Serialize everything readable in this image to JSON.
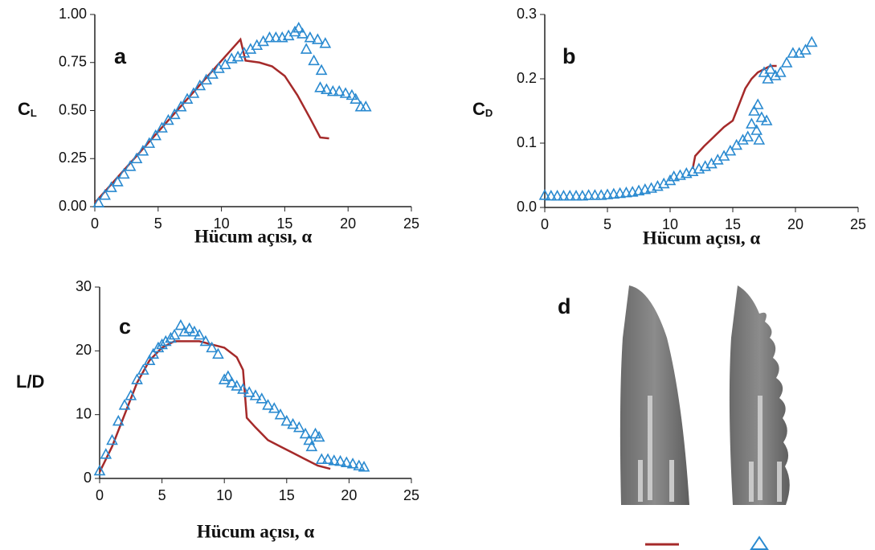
{
  "chart_data": [
    {
      "type": "line",
      "annotation": "a",
      "ylabel": "C",
      "ylabel_sub": "L",
      "xlabel": "Hücum açısı, α",
      "xlim": [
        0,
        25
      ],
      "xticks": [
        0,
        5,
        10,
        15,
        20,
        25
      ],
      "ylim": [
        0,
        1
      ],
      "yticks": [
        {
          "value": 0,
          "label": "0.00"
        },
        {
          "value": 0.25,
          "label": "0.25"
        },
        {
          "value": 0.5,
          "label": "0.50"
        },
        {
          "value": 0.75,
          "label": "0.75"
        },
        {
          "value": 1,
          "label": "1.00"
        }
      ],
      "series": [
        {
          "color": "#a52a2a",
          "marker": "none",
          "x": [
            0,
            11.5,
            11.9,
            13,
            14,
            15,
            16,
            17,
            17.8,
            18.5
          ],
          "values": [
            0.02,
            0.87,
            0.76,
            0.75,
            0.73,
            0.68,
            0.58,
            0.46,
            0.36,
            0.355
          ]
        },
        {
          "color": "#2a8ad0",
          "marker": "triangle",
          "x": [
            0.3,
            0.8,
            1.3,
            1.8,
            2.3,
            2.8,
            3.3,
            3.8,
            4.3,
            4.8,
            5.3,
            5.8,
            6.3,
            6.8,
            7.3,
            7.8,
            8.3,
            8.8,
            9.3,
            9.8,
            10.3,
            10.8,
            11.3,
            11.8,
            12.3,
            12.8,
            13.3,
            13.8,
            14.3,
            14.8,
            15.3,
            15.8,
            16.1,
            16.4,
            16.7,
            17.0,
            17.3,
            17.6,
            17.9,
            18.2,
            17.8,
            18.3,
            18.8,
            19.3,
            19.8,
            20.3,
            20.6,
            21.0,
            21.4
          ],
          "values": [
            0.02,
            0.06,
            0.1,
            0.13,
            0.17,
            0.21,
            0.25,
            0.29,
            0.33,
            0.37,
            0.41,
            0.45,
            0.48,
            0.52,
            0.56,
            0.59,
            0.63,
            0.66,
            0.69,
            0.72,
            0.74,
            0.77,
            0.78,
            0.8,
            0.82,
            0.84,
            0.86,
            0.88,
            0.88,
            0.88,
            0.89,
            0.91,
            0.93,
            0.9,
            0.82,
            0.88,
            0.76,
            0.87,
            0.71,
            0.85,
            0.62,
            0.61,
            0.6,
            0.6,
            0.59,
            0.58,
            0.56,
            0.52,
            0.52
          ]
        }
      ]
    },
    {
      "type": "line",
      "annotation": "b",
      "ylabel": "C",
      "ylabel_sub": "D",
      "xlabel": "Hücum açısı, α",
      "xlim": [
        0,
        25
      ],
      "xticks": [
        0,
        5,
        10,
        15,
        20,
        25
      ],
      "ylim": [
        0,
        0.3
      ],
      "yticks": [
        {
          "value": 0,
          "label": "0.0"
        },
        0.1,
        0.2,
        0.3
      ],
      "series": [
        {
          "color": "#a52a2a",
          "marker": "none",
          "x": [
            11.8,
            12,
            12.7,
            13.5,
            14.3,
            15,
            15.5,
            16,
            16.5,
            17,
            17.5,
            18,
            18.5
          ],
          "values": [
            0.06,
            0.08,
            0.095,
            0.11,
            0.125,
            0.135,
            0.16,
            0.185,
            0.2,
            0.21,
            0.215,
            0.22,
            0.22
          ]
        },
        {
          "color": "#2a8ad0",
          "marker": "triangle",
          "x": [
            0,
            0.5,
            1,
            1.5,
            2,
            2.5,
            3,
            3.5,
            4,
            4.5,
            5,
            5.5,
            6,
            6.5,
            7,
            7.5,
            8,
            8.5,
            9,
            9.5,
            10,
            10.3,
            10.8,
            11.3,
            11.8,
            12.3,
            12.8,
            13.3,
            13.8,
            14.3,
            14.8,
            15.3,
            15.8,
            16.2,
            16.5,
            16.7,
            16.9,
            17,
            17.1,
            17.3,
            17.5,
            17.7,
            17.8,
            18,
            18.4,
            18.8,
            19.3,
            19.8,
            20.3,
            20.8,
            21.3
          ],
          "values": [
            0.019,
            0.018,
            0.018,
            0.018,
            0.018,
            0.018,
            0.018,
            0.019,
            0.019,
            0.019,
            0.02,
            0.021,
            0.022,
            0.023,
            0.024,
            0.026,
            0.028,
            0.03,
            0.033,
            0.037,
            0.042,
            0.048,
            0.05,
            0.053,
            0.056,
            0.06,
            0.064,
            0.068,
            0.074,
            0.08,
            0.088,
            0.097,
            0.105,
            0.11,
            0.13,
            0.15,
            0.12,
            0.16,
            0.105,
            0.14,
            0.21,
            0.135,
            0.2,
            0.215,
            0.205,
            0.21,
            0.225,
            0.24,
            0.24,
            0.245,
            0.257
          ]
        }
      ]
    },
    {
      "type": "line",
      "annotation": "c",
      "ylabel": "L/D",
      "xlabel": "Hücum açısı, α",
      "xlim": [
        0,
        25
      ],
      "xticks": [
        0,
        5,
        10,
        15,
        20,
        25
      ],
      "ylim": [
        0,
        30
      ],
      "yticks": [
        0,
        10,
        20,
        30
      ],
      "series": [
        {
          "color": "#a52a2a",
          "marker": "none",
          "x": [
            0,
            1,
            2,
            3,
            4,
            5,
            6,
            7,
            8,
            9,
            10,
            11,
            11.5,
            11.8,
            12.5,
            13.5,
            14.5,
            15.5,
            16.5,
            17.5,
            18.5
          ],
          "values": [
            1,
            5,
            10,
            15,
            18.5,
            20.5,
            21.5,
            21.5,
            21.5,
            21,
            20.5,
            19,
            17,
            9.5,
            8,
            6,
            5,
            4,
            3,
            2,
            1.5
          ]
        },
        {
          "color": "#2a8ad0",
          "marker": "triangle",
          "x": [
            0,
            0.5,
            1,
            1.5,
            2,
            2.5,
            3,
            3.5,
            4,
            4.3,
            4.7,
            5,
            5.3,
            5.7,
            6,
            6.5,
            6.8,
            7.2,
            7.6,
            8,
            8.5,
            9,
            9.5,
            10,
            10.3,
            10.6,
            11,
            11.5,
            12,
            12.5,
            13,
            13.5,
            14,
            14.5,
            15,
            15.5,
            16,
            16.5,
            16.8,
            17,
            17.3,
            17.6,
            17.8,
            18.3,
            18.8,
            19.3,
            19.8,
            20.3,
            20.8,
            21.2
          ],
          "values": [
            1.2,
            3.8,
            6,
            9,
            11.5,
            13,
            15.5,
            17,
            18.5,
            19.5,
            20.5,
            21,
            21.5,
            22,
            22.5,
            24,
            23,
            23.5,
            23,
            22.5,
            21.5,
            20.5,
            19.5,
            15.5,
            16,
            15,
            14.5,
            14,
            13.5,
            13,
            12.5,
            11.5,
            11,
            10,
            9,
            8.5,
            8,
            7,
            6,
            5,
            7,
            6.5,
            3,
            3,
            2.8,
            2.7,
            2.5,
            2.3,
            2,
            1.8
          ]
        }
      ]
    }
  ],
  "panel_d": {
    "annotation": "d"
  }
}
